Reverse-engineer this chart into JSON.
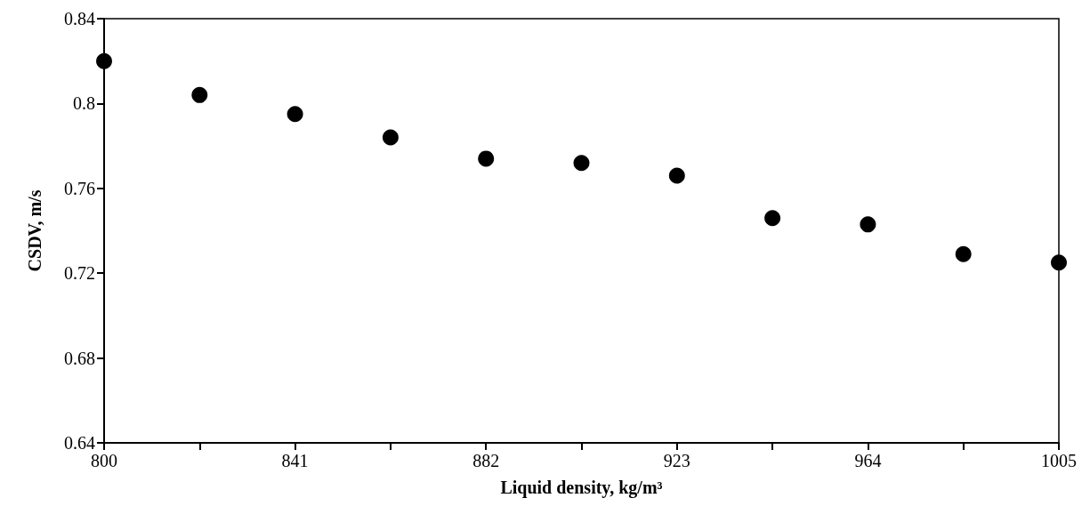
{
  "chart_data": {
    "type": "scatter",
    "xlabel": "Liquid density, kg/m³",
    "ylabel": "CSDV, m/s",
    "x": [
      800,
      820.5,
      841,
      861.5,
      882,
      902.5,
      923,
      943.5,
      964,
      984.5,
      1005
    ],
    "series": [
      {
        "color": "#000000",
        "values": [
          0.82,
          0.804,
          0.795,
          0.784,
          0.774,
          0.772,
          0.766,
          0.746,
          0.743,
          0.729,
          0.725
        ]
      }
    ],
    "xlim": [
      800,
      1005
    ],
    "xticks": [
      800,
      {
        "value": 820.5,
        "label": null
      },
      841,
      {
        "value": 861.5,
        "label": null
      },
      882,
      {
        "value": 902.5,
        "label": null
      },
      923,
      {
        "value": 943.5,
        "label": null
      },
      964,
      {
        "value": 984.5,
        "label": null
      },
      1005
    ],
    "ylim": [
      0.64,
      0.84
    ],
    "yticks": [
      0.64,
      0.68,
      0.72,
      0.76,
      0.8,
      0.84
    ],
    "grid": false,
    "marker": "circle"
  }
}
